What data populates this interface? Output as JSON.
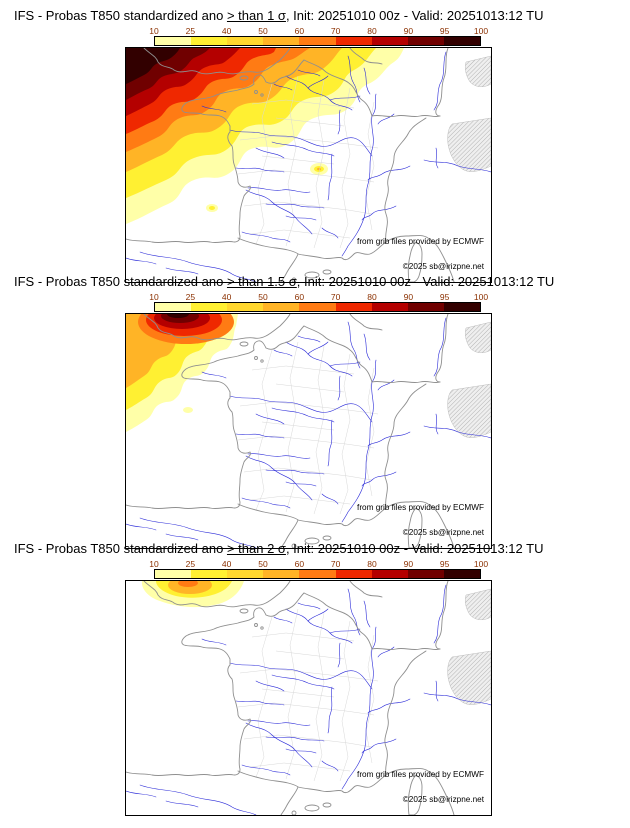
{
  "colorbar": {
    "ticks": [
      "10",
      "25",
      "40",
      "50",
      "60",
      "70",
      "80",
      "90",
      "95",
      "100"
    ],
    "segment_colors": [
      "#ffffa8",
      "#fff032",
      "#ffd72e",
      "#ffb426",
      "#ff7b14",
      "#ef2800",
      "#b40000",
      "#700000",
      "#320000"
    ],
    "tick_color": "#8b3000"
  },
  "panels": [
    {
      "title_prefix": "IFS - Probas T850  standardized ano ",
      "threshold": "> than 1 σ",
      "title_suffix": ", Init: 20251010 00z - Valid: 20251013:12 TU"
    },
    {
      "title_prefix": "IFS - Probas T850  standardized ano ",
      "threshold": "> than 1.5 σ",
      "title_suffix": ", Init: 20251010 00z - Valid: 20251013:12 TU"
    },
    {
      "title_prefix": "IFS - Probas T850  standardized ano ",
      "threshold": "> than 2 σ",
      "title_suffix": ", Init: 20251010 00z - Valid: 20251013:12 TU"
    }
  ],
  "credits": {
    "provider": "from grib files provided by ECMWF",
    "copyright": "©2025 sb@irizpne.net"
  }
}
